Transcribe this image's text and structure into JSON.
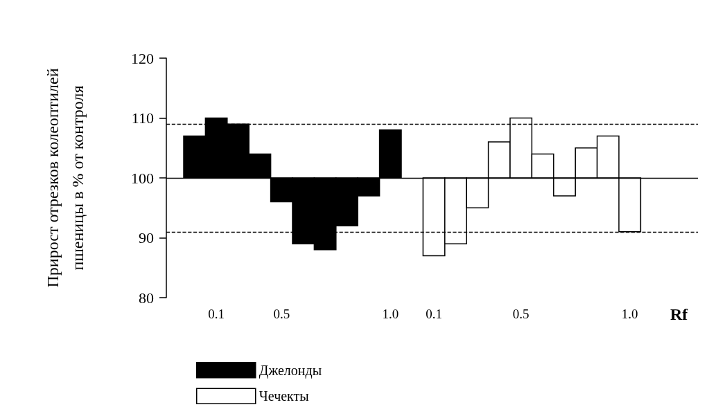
{
  "chart_data": {
    "type": "bar",
    "ylabel": "Прирост отрезков колеоптилей\nпшеницы в % от контроля",
    "xlabel": "Rf",
    "categories": [
      null,
      "0.1",
      null,
      null,
      "0.5",
      null,
      null,
      null,
      null,
      "1.0",
      null,
      "0.1",
      null,
      null,
      null,
      "0.5",
      null,
      null,
      null,
      null,
      "1.0"
    ],
    "series": [
      {
        "name": "Джелонды",
        "color": "#000000",
        "base": [
          100,
          100,
          100,
          100,
          100,
          100,
          100,
          100,
          100,
          100,
          null,
          null,
          null,
          null,
          null,
          null,
          null,
          null,
          null,
          null,
          null
        ],
        "values": [
          7,
          10,
          9,
          4,
          -4,
          -11,
          -12,
          -8,
          -3,
          8,
          null,
          null,
          null,
          null,
          null,
          null,
          null,
          null,
          null,
          null,
          null
        ]
      },
      {
        "name": "Чечекты",
        "color": "#ffffff",
        "base": [
          null,
          null,
          null,
          null,
          null,
          null,
          null,
          null,
          null,
          null,
          null,
          100,
          100,
          100,
          100,
          100,
          100,
          100,
          100,
          100,
          100
        ],
        "values": [
          null,
          null,
          null,
          null,
          null,
          null,
          null,
          null,
          null,
          null,
          null,
          -13,
          -11,
          -5,
          6,
          10,
          4,
          -3,
          5,
          7,
          -9
        ]
      }
    ],
    "ylim": [
      80,
      120
    ],
    "yticks": [
      80,
      90,
      100,
      110,
      120
    ],
    "ref_lines": [
      {
        "axis": "y",
        "value": 100,
        "line_style": "solid"
      },
      {
        "axis": "y",
        "value": 109,
        "line_style": "dashed"
      },
      {
        "axis": "y",
        "value": 91,
        "line_style": "dashed"
      }
    ],
    "legend": "bottom left"
  }
}
